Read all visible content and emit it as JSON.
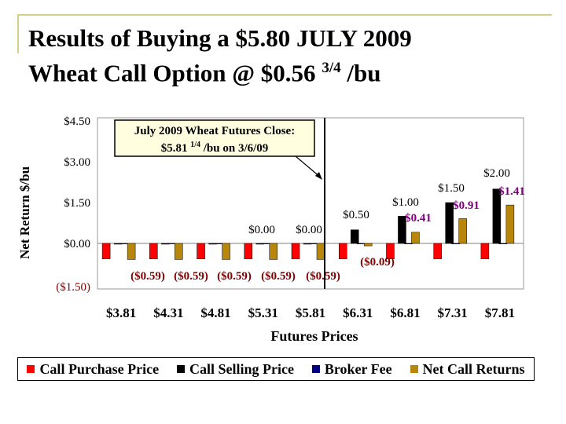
{
  "title": {
    "line1": "Results of Buying a $5.80 JULY 2009",
    "line2a": "Wheat Call Option @ $0.56 ",
    "line2_sup": "3/4",
    "line2b": " /bu"
  },
  "annotation": {
    "line1": "July 2009 Wheat Futures Close:",
    "line2a": "$5.81 ",
    "line2_sup": "1/4",
    "line2b": " /bu on 3/6/09"
  },
  "colors": {
    "call_purchase": "#ff0000",
    "call_selling": "#000000",
    "broker_fee": "#000080",
    "net_returns": "#b8860b",
    "red_label": "#800000",
    "purple_label": "#800080"
  },
  "chart_data": {
    "type": "bar",
    "title": "Results of Buying a $5.80 JULY 2009 Wheat Call Option @ $0.56 3/4 /bu",
    "xlabel": "Futures Prices",
    "ylabel": "Net Return $/bu",
    "ylim": [
      -1.5,
      4.5
    ],
    "yticks": [
      "$4.50",
      "$3.00",
      "$1.50",
      "$0.00",
      "($1.50)"
    ],
    "categories": [
      "$3.81",
      "$4.31",
      "$4.81",
      "$5.31",
      "$5.81",
      "$6.31",
      "$6.81",
      "$7.31",
      "$7.81"
    ],
    "series": [
      {
        "name": "Call Purchase Price",
        "values": [
          -0.57,
          -0.57,
          -0.57,
          -0.57,
          -0.57,
          -0.57,
          -0.57,
          -0.57,
          -0.57
        ]
      },
      {
        "name": "Call Selling Price",
        "values": [
          0.0,
          0.0,
          0.0,
          0.0,
          0.0,
          0.5,
          1.0,
          1.5,
          2.0
        ]
      },
      {
        "name": "Broker Fee",
        "values": [
          -0.02,
          -0.02,
          -0.02,
          -0.02,
          -0.02,
          -0.02,
          -0.02,
          -0.02,
          -0.02
        ]
      },
      {
        "name": "Net Call Returns",
        "values": [
          -0.59,
          -0.59,
          -0.59,
          -0.59,
          -0.59,
          -0.09,
          0.41,
          0.91,
          1.41
        ]
      }
    ],
    "selling_labels": [
      "",
      "",
      "",
      "$0.00",
      "$0.00",
      "$0.50",
      "$1.00",
      "$1.50",
      "$2.00"
    ],
    "net_labels": [
      "($0.59)",
      "($0.59)",
      "($0.59)",
      "($0.59)",
      "($0.59)",
      "($0.09)",
      "$0.41",
      "$0.91",
      "$1.41"
    ],
    "vline_at": "$5.81"
  }
}
